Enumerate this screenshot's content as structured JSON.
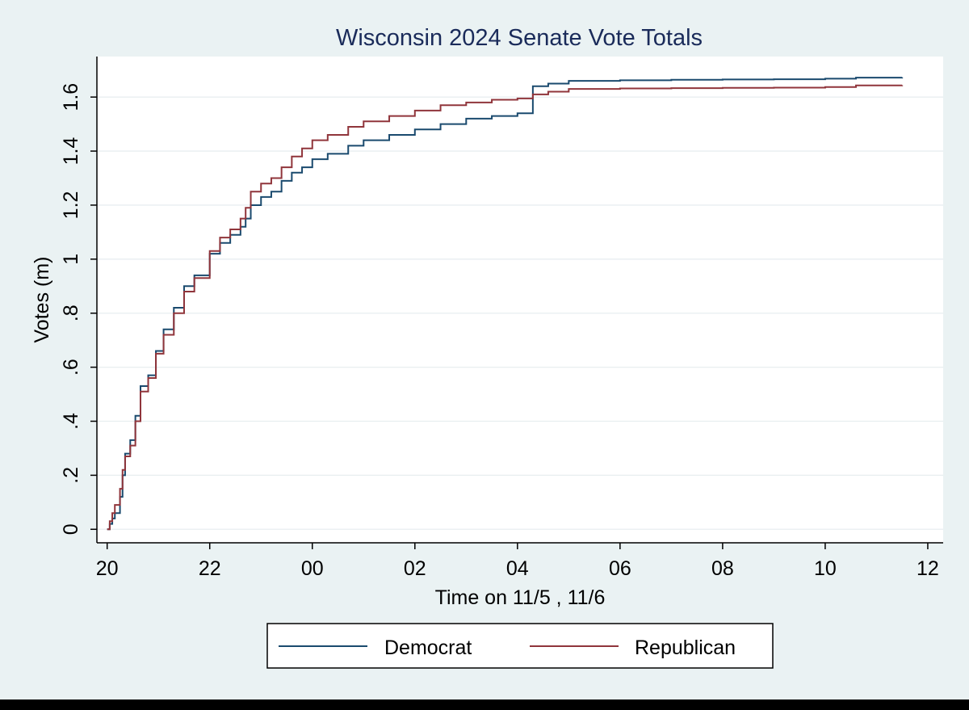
{
  "chart_data": {
    "type": "line",
    "title": "Wisconsin 2024 Senate Vote Totals",
    "xlabel": "Time on 11/5 , 11/6",
    "ylabel": "Votes (m)",
    "x_unit": "hour of day",
    "x_tick_values": [
      20,
      22,
      24,
      26,
      28,
      30,
      32,
      34,
      36
    ],
    "x_tick_labels": [
      "20",
      "22",
      "00",
      "02",
      "04",
      "06",
      "08",
      "10",
      "12"
    ],
    "y_tick_values": [
      0,
      0.2,
      0.4,
      0.6,
      0.8,
      1.0,
      1.2,
      1.4,
      1.6
    ],
    "y_tick_labels": [
      "0",
      ".2",
      ".4",
      ".6",
      ".8",
      "1",
      "1.2",
      "1.4",
      "1.6"
    ],
    "xlim": [
      19.8,
      36.3
    ],
    "ylim": [
      -0.05,
      1.75
    ],
    "grid": true,
    "legend_position": "bottom",
    "colors": {
      "background": "#eaf2f3",
      "plot_background": "#ffffff",
      "grid": "#e8eef0",
      "title": "#1a2b5a",
      "democrat": "#1a4a6e",
      "republican": "#90353b"
    },
    "series": [
      {
        "name": "Democrat",
        "color": "#1a4a6e",
        "points": [
          [
            20.0,
            0.0
          ],
          [
            20.05,
            0.02
          ],
          [
            20.1,
            0.04
          ],
          [
            20.15,
            0.06
          ],
          [
            20.25,
            0.12
          ],
          [
            20.3,
            0.2
          ],
          [
            20.35,
            0.28
          ],
          [
            20.45,
            0.33
          ],
          [
            20.55,
            0.42
          ],
          [
            20.65,
            0.53
          ],
          [
            20.8,
            0.57
          ],
          [
            20.95,
            0.66
          ],
          [
            21.1,
            0.74
          ],
          [
            21.3,
            0.82
          ],
          [
            21.5,
            0.9
          ],
          [
            21.7,
            0.94
          ],
          [
            22.0,
            1.02
          ],
          [
            22.2,
            1.06
          ],
          [
            22.4,
            1.09
          ],
          [
            22.6,
            1.12
          ],
          [
            22.7,
            1.15
          ],
          [
            22.8,
            1.2
          ],
          [
            23.0,
            1.23
          ],
          [
            23.2,
            1.25
          ],
          [
            23.4,
            1.29
          ],
          [
            23.6,
            1.32
          ],
          [
            23.8,
            1.34
          ],
          [
            24.0,
            1.37
          ],
          [
            24.3,
            1.39
          ],
          [
            24.7,
            1.42
          ],
          [
            25.0,
            1.44
          ],
          [
            25.5,
            1.46
          ],
          [
            26.0,
            1.48
          ],
          [
            26.5,
            1.5
          ],
          [
            27.0,
            1.52
          ],
          [
            27.5,
            1.53
          ],
          [
            28.0,
            1.54
          ],
          [
            28.3,
            1.54
          ],
          [
            28.3,
            1.64
          ],
          [
            28.6,
            1.65
          ],
          [
            29.0,
            1.66
          ],
          [
            30.0,
            1.662
          ],
          [
            31.0,
            1.664
          ],
          [
            32.0,
            1.665
          ],
          [
            33.0,
            1.666
          ],
          [
            34.0,
            1.668
          ],
          [
            34.6,
            1.672
          ],
          [
            35.5,
            1.673
          ]
        ]
      },
      {
        "name": "Republican",
        "color": "#90353b",
        "points": [
          [
            20.0,
            0.0
          ],
          [
            20.05,
            0.03
          ],
          [
            20.1,
            0.06
          ],
          [
            20.15,
            0.09
          ],
          [
            20.25,
            0.15
          ],
          [
            20.3,
            0.22
          ],
          [
            20.35,
            0.27
          ],
          [
            20.45,
            0.31
          ],
          [
            20.55,
            0.4
          ],
          [
            20.65,
            0.51
          ],
          [
            20.8,
            0.56
          ],
          [
            20.95,
            0.65
          ],
          [
            21.1,
            0.72
          ],
          [
            21.3,
            0.8
          ],
          [
            21.5,
            0.88
          ],
          [
            21.7,
            0.93
          ],
          [
            22.0,
            1.03
          ],
          [
            22.2,
            1.08
          ],
          [
            22.4,
            1.11
          ],
          [
            22.6,
            1.15
          ],
          [
            22.7,
            1.19
          ],
          [
            22.8,
            1.25
          ],
          [
            23.0,
            1.28
          ],
          [
            23.2,
            1.3
          ],
          [
            23.4,
            1.34
          ],
          [
            23.6,
            1.38
          ],
          [
            23.8,
            1.41
          ],
          [
            24.0,
            1.44
          ],
          [
            24.3,
            1.46
          ],
          [
            24.7,
            1.49
          ],
          [
            25.0,
            1.51
          ],
          [
            25.5,
            1.53
          ],
          [
            26.0,
            1.55
          ],
          [
            26.5,
            1.57
          ],
          [
            27.0,
            1.58
          ],
          [
            27.5,
            1.59
          ],
          [
            28.0,
            1.595
          ],
          [
            28.3,
            1.595
          ],
          [
            28.3,
            1.61
          ],
          [
            28.6,
            1.62
          ],
          [
            29.0,
            1.63
          ],
          [
            30.0,
            1.632
          ],
          [
            31.0,
            1.633
          ],
          [
            32.0,
            1.634
          ],
          [
            33.0,
            1.635
          ],
          [
            34.0,
            1.637
          ],
          [
            34.6,
            1.643
          ],
          [
            35.5,
            1.644
          ]
        ]
      }
    ]
  }
}
